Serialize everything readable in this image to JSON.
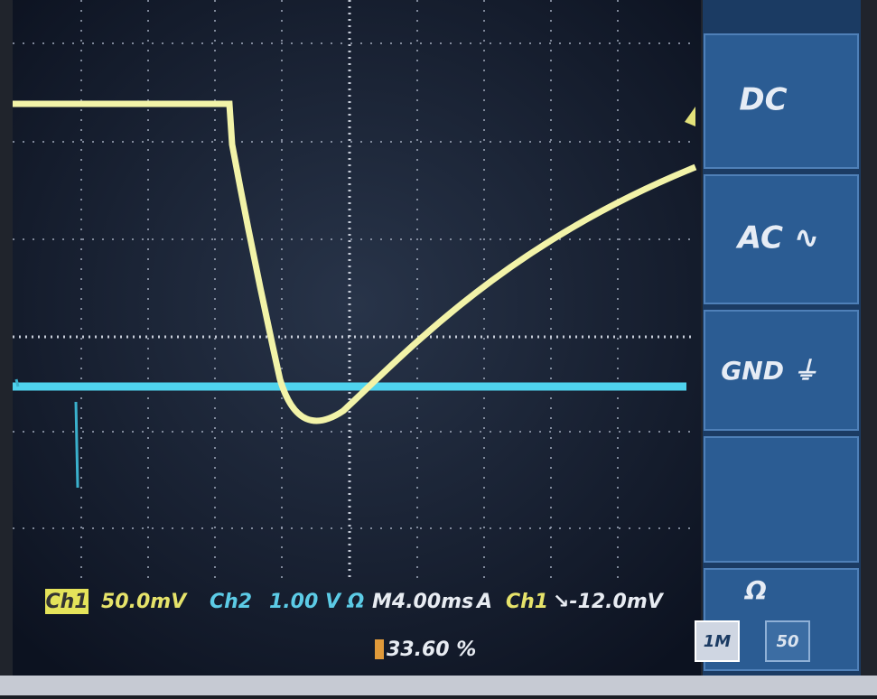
{
  "menu": {
    "buttons": [
      "DC",
      "AC ∿",
      "GND ⏚"
    ],
    "impedance": {
      "title": "Ω",
      "options": [
        "1M",
        "50"
      ]
    }
  },
  "status": {
    "ch1_label": "Ch1",
    "ch1_scale": "50.0mV",
    "ch2_label": "Ch2",
    "ch2_scale": "1.00 V Ω",
    "timebase": "M4.00ms",
    "trigger_mode": "A",
    "trigger_source": "Ch1",
    "trigger_level": "↘-12.0mV",
    "position": "33.60 %"
  }
}
